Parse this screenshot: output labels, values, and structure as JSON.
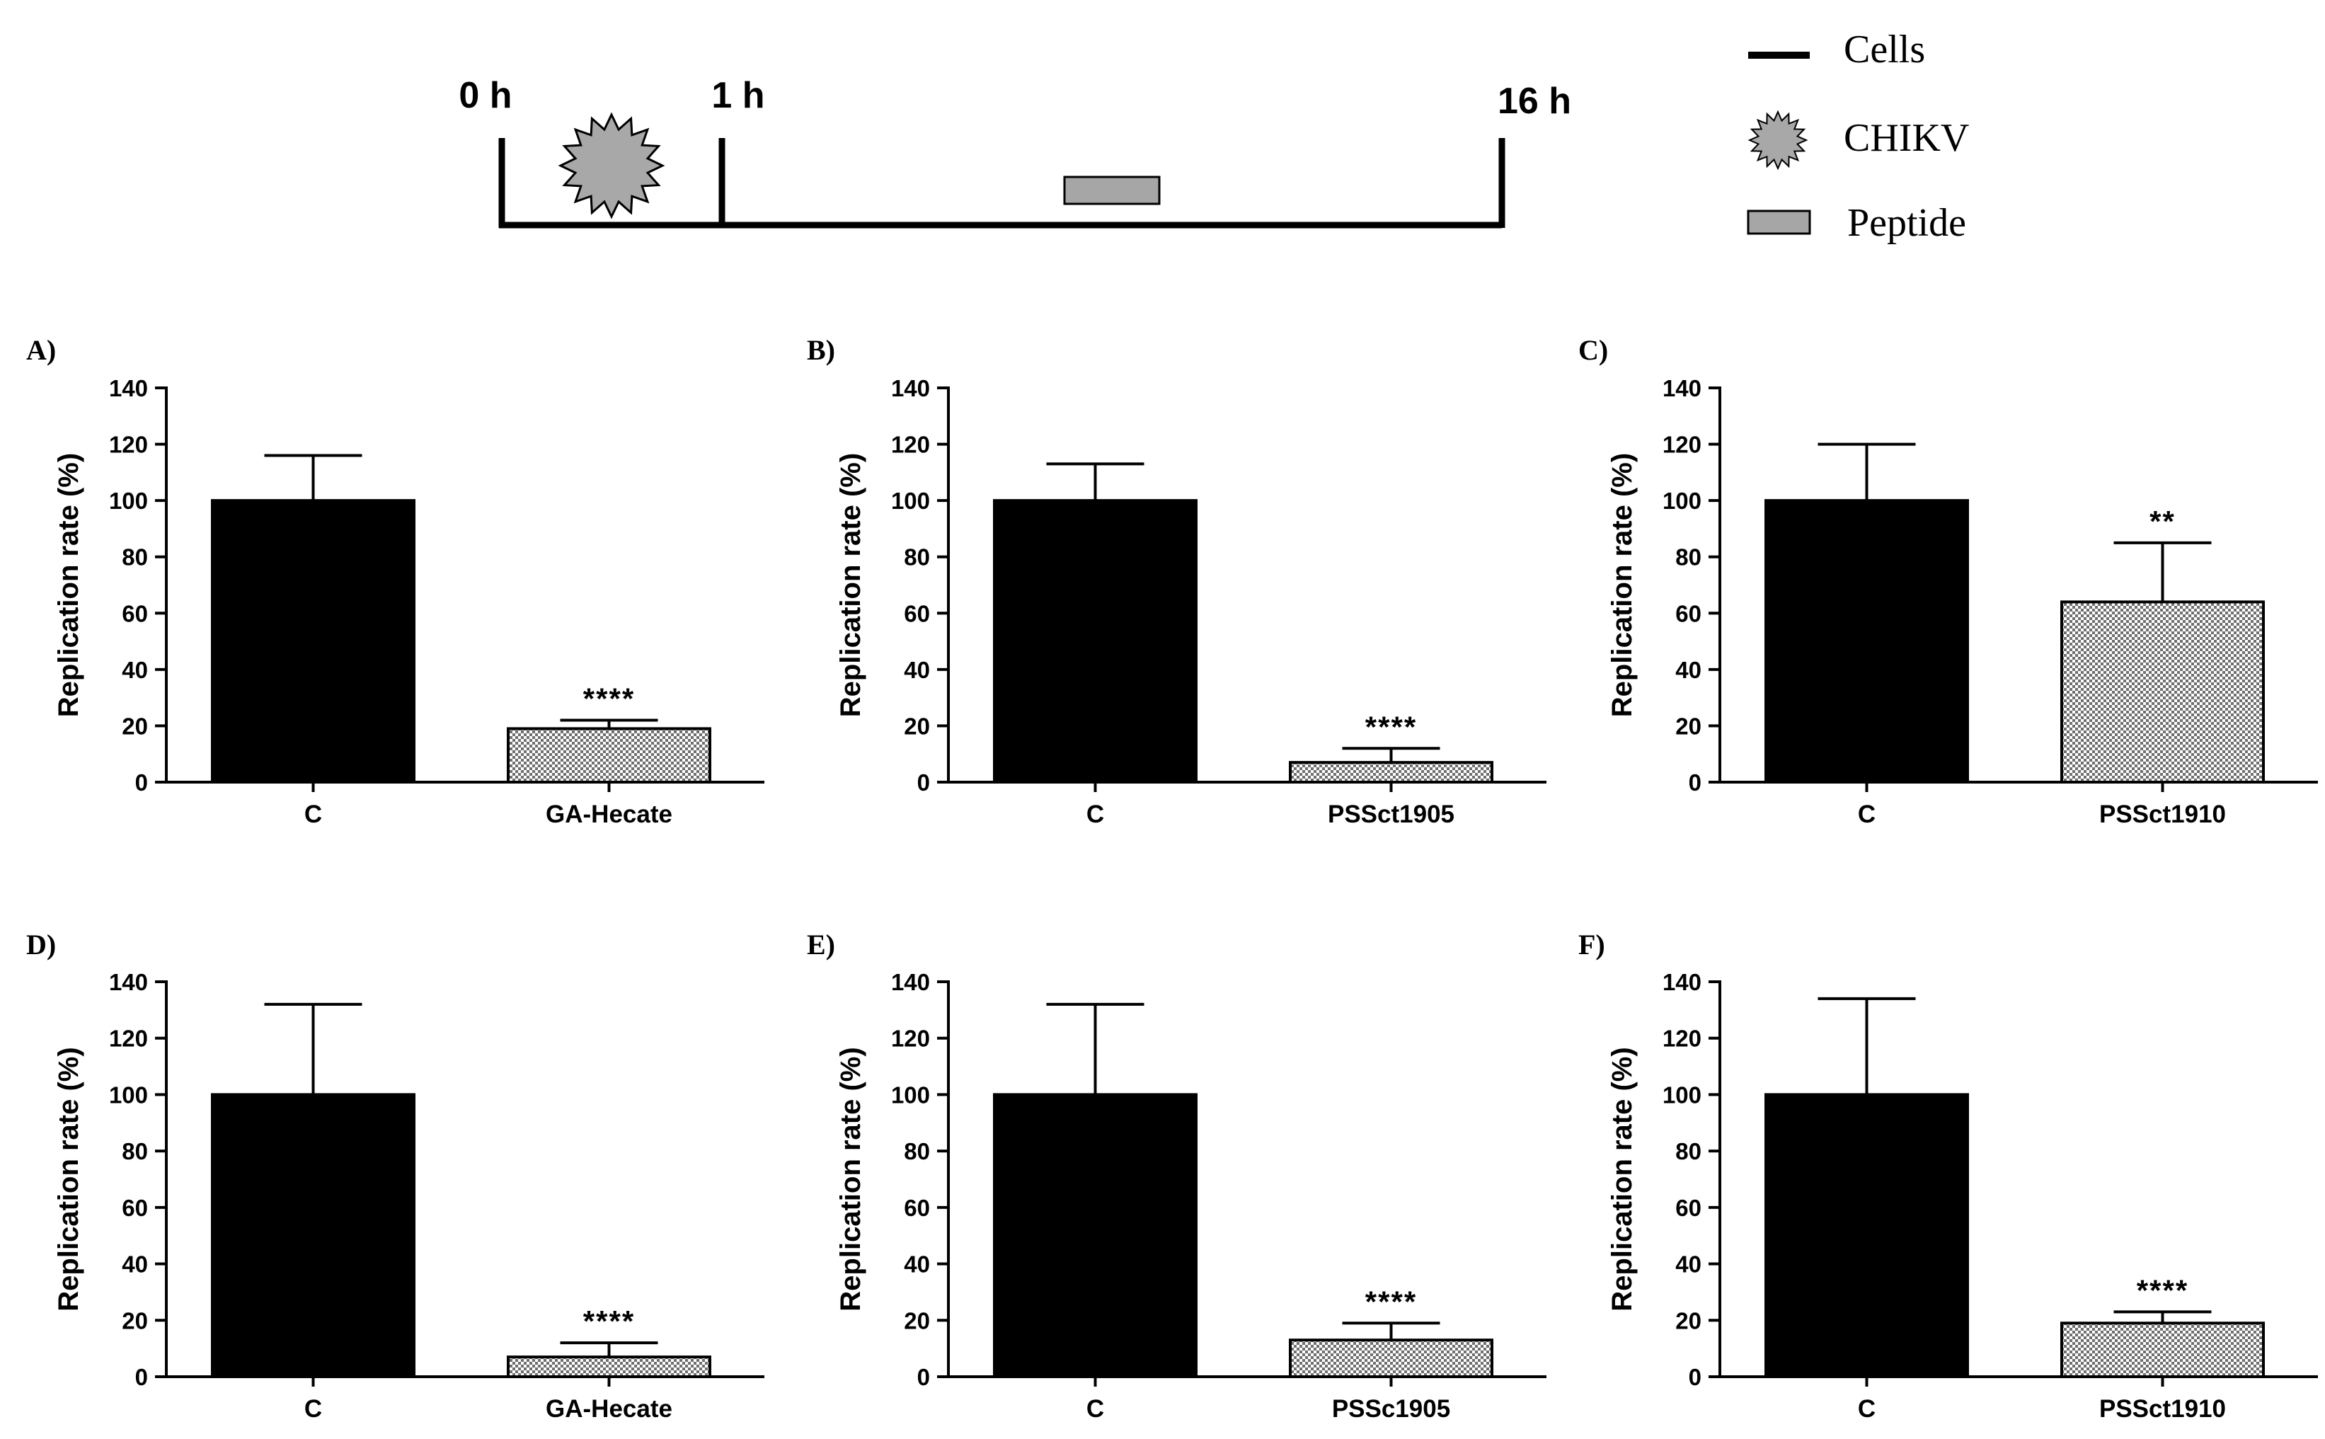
{
  "timeline": {
    "times": [
      "0 h",
      "1 h",
      "16 h"
    ],
    "legend": [
      {
        "label": "Cells",
        "icon": "line-icon"
      },
      {
        "label": "CHIKV",
        "icon": "virus-icon"
      },
      {
        "label": "Peptide",
        "icon": "peptide-box-icon"
      }
    ]
  },
  "colors": {
    "control": "#000000",
    "peptide_pattern": "#8a8a8a",
    "timeline_box": "#a6a6a6"
  },
  "chart_data": [
    {
      "panel": "A)",
      "type": "bar",
      "ylabel": "Replication rate (%)",
      "ylim": [
        0,
        140
      ],
      "yticks": [
        0,
        20,
        40,
        60,
        80,
        100,
        120,
        140
      ],
      "categories": [
        "C",
        "GA-Hecate"
      ],
      "values": [
        100,
        19
      ],
      "errors": [
        16,
        3
      ],
      "significance": [
        "",
        "****"
      ]
    },
    {
      "panel": "B)",
      "type": "bar",
      "ylabel": "Replication rate (%)",
      "ylim": [
        0,
        140
      ],
      "yticks": [
        0,
        20,
        40,
        60,
        80,
        100,
        120,
        140
      ],
      "categories": [
        "C",
        "PSSct1905"
      ],
      "values": [
        100,
        7
      ],
      "errors": [
        13,
        5
      ],
      "significance": [
        "",
        "****"
      ]
    },
    {
      "panel": "C)",
      "type": "bar",
      "ylabel": "Replication rate (%)",
      "ylim": [
        0,
        140
      ],
      "yticks": [
        0,
        20,
        40,
        60,
        80,
        100,
        120,
        140
      ],
      "categories": [
        "C",
        "PSSct1910"
      ],
      "values": [
        100,
        64
      ],
      "errors": [
        20,
        21
      ],
      "significance": [
        "",
        "**"
      ]
    },
    {
      "panel": "D)",
      "type": "bar",
      "ylabel": "Replication rate (%)",
      "ylim": [
        0,
        140
      ],
      "yticks": [
        0,
        20,
        40,
        60,
        80,
        100,
        120,
        140
      ],
      "categories": [
        "C",
        "GA-Hecate"
      ],
      "values": [
        100,
        7
      ],
      "errors": [
        32,
        5
      ],
      "significance": [
        "",
        "****"
      ]
    },
    {
      "panel": "E)",
      "type": "bar",
      "ylabel": "Replication rate (%)",
      "ylim": [
        0,
        140
      ],
      "yticks": [
        0,
        20,
        40,
        60,
        80,
        100,
        120,
        140
      ],
      "categories": [
        "C",
        "PSSc1905"
      ],
      "values": [
        100,
        13
      ],
      "errors": [
        32,
        6
      ],
      "significance": [
        "",
        "****"
      ]
    },
    {
      "panel": "F)",
      "type": "bar",
      "ylabel": "Replication rate (%)",
      "ylim": [
        0,
        140
      ],
      "yticks": [
        0,
        20,
        40,
        60,
        80,
        100,
        120,
        140
      ],
      "categories": [
        "C",
        "PSSct1910"
      ],
      "values": [
        100,
        19
      ],
      "errors": [
        34,
        4
      ],
      "significance": [
        "",
        "****"
      ]
    }
  ]
}
